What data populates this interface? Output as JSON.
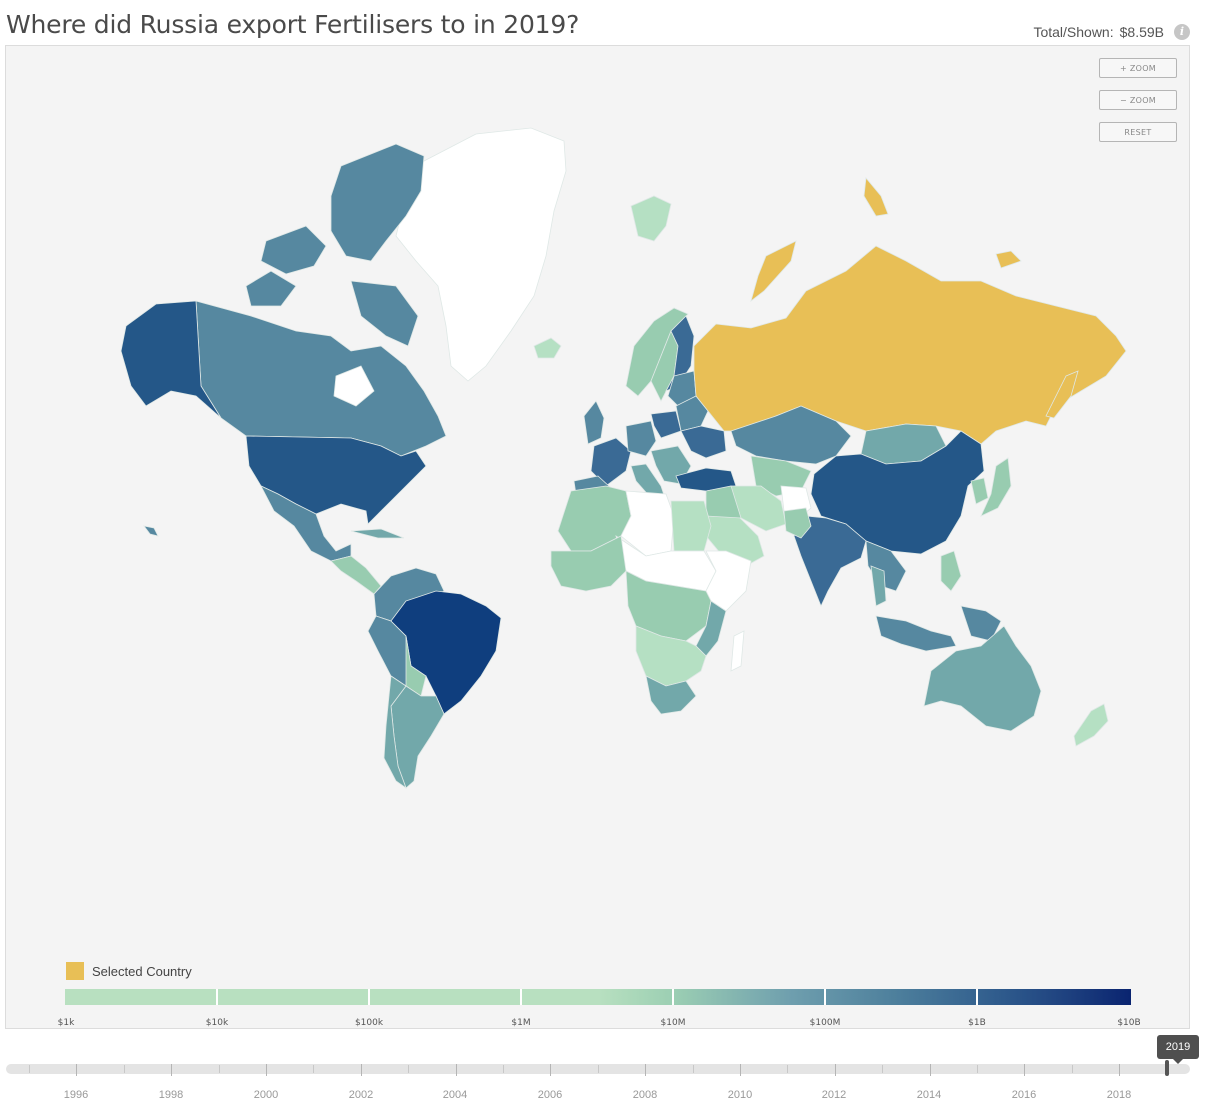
{
  "title": "Where did Russia export Fertilisers to in 2019?",
  "total_label": "Total/Shown:",
  "total_value": "$8.59B",
  "info_icon": "info-icon",
  "zoom_in_label": "+ ZOOM",
  "zoom_out_label": "− ZOOM",
  "reset_label": "RESET",
  "legend": {
    "selected_label": "Selected Country",
    "selected_color": "#e8bf56",
    "scale_labels": [
      "$1k",
      "$10k",
      "$100k",
      "$1M",
      "$10M",
      "$100M",
      "$1B",
      "$10B"
    ],
    "scale_colors": [
      "#b8e0c0",
      "#9ccfb3",
      "#6f9fae",
      "#4d7f9c",
      "#2e5a8c",
      "#1e417f",
      "#0a2470"
    ]
  },
  "colors": {
    "selected": "#e8bf56",
    "no_data": "#ffffff",
    "v1": "#b5e0c3",
    "v2": "#98ccb0",
    "v3": "#72a8aa",
    "v4": "#5688a0",
    "v5": "#3a6a95",
    "v6": "#245788",
    "v7": "#0f3e7e"
  },
  "timeline": {
    "years": [
      "1996",
      "1998",
      "2000",
      "2002",
      "2004",
      "2006",
      "2008",
      "2010",
      "2012",
      "2014",
      "2016",
      "2018"
    ],
    "selected_year": "2019"
  }
}
